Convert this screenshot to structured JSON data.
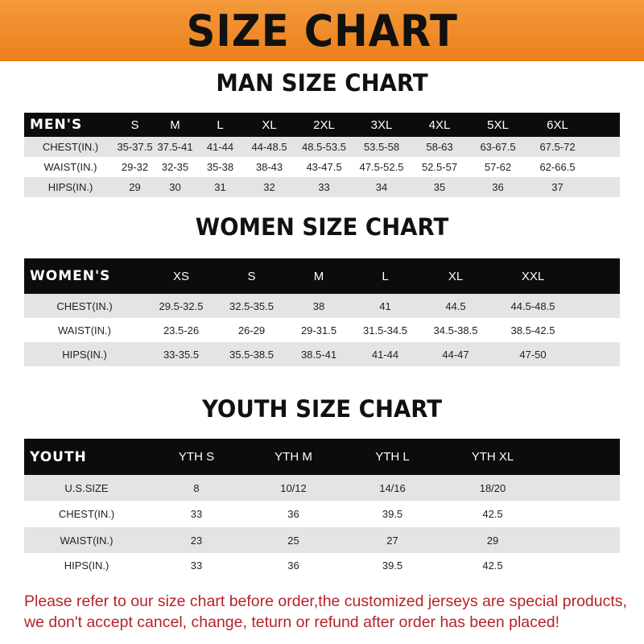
{
  "title": "SIZE CHART",
  "colors": {
    "banner": "#ee8a2a",
    "header_row": "#0d0b0b",
    "notice_text": "#b5232b"
  },
  "men": {
    "title": "MAN SIZE CHART",
    "headers": [
      "MEN'S",
      "S",
      "M",
      "L",
      "XL",
      "2XL",
      "3XL",
      "4XL",
      "5XL",
      "6XL"
    ],
    "rows": [
      [
        "CHEST(IN.)",
        "35-37.5",
        "37.5-41",
        "41-44",
        "44-48.5",
        "48.5-53.5",
        "53.5-58",
        "58-63",
        "63-67.5",
        "67.5-72"
      ],
      [
        "WAIST(IN.)",
        "29-32",
        "32-35",
        "35-38",
        "38-43",
        "43-47.5",
        "47.5-52.5",
        "52.5-57",
        "57-62",
        "62-66.5"
      ],
      [
        "HIPS(IN.)",
        "29",
        "30",
        "31",
        "32",
        "33",
        "34",
        "35",
        "36",
        "37"
      ]
    ]
  },
  "women": {
    "title": "WOMEN SIZE CHART",
    "headers": [
      "WOMEN'S",
      "XS",
      "S",
      "M",
      "L",
      "XL",
      "XXL"
    ],
    "rows": [
      [
        "CHEST(IN.)",
        "29.5-32.5",
        "32.5-35.5",
        "38",
        "41",
        "44.5",
        "44.5-48.5"
      ],
      [
        "WAIST(IN.)",
        "23.5-26",
        "26-29",
        "29-31.5",
        "31.5-34.5",
        "34.5-38.5",
        "38.5-42.5"
      ],
      [
        "HIPS(IN.)",
        "33-35.5",
        "35.5-38.5",
        "38.5-41",
        "41-44",
        "44-47",
        "47-50"
      ]
    ]
  },
  "youth": {
    "title": "YOUTH SIZE CHART",
    "headers": [
      "YOUTH",
      "YTH S",
      "YTH M",
      "YTH L",
      "YTH XL"
    ],
    "rows": [
      [
        "U.S.SIZE",
        "8",
        "10/12",
        "14/16",
        "18/20"
      ],
      [
        "CHEST(IN.)",
        "33",
        "36",
        "39.5",
        "42.5"
      ],
      [
        "WAIST(IN.)",
        "23",
        "25",
        "27",
        "29"
      ],
      [
        "HIPS(IN.)",
        "33",
        "36",
        "39.5",
        "42.5"
      ]
    ]
  },
  "notice": {
    "line1": "Please refer to our size chart before order,the customized jerseys are special products,",
    "line2": "we don't accept cancel, change, teturn or refund after order has been placed!"
  }
}
